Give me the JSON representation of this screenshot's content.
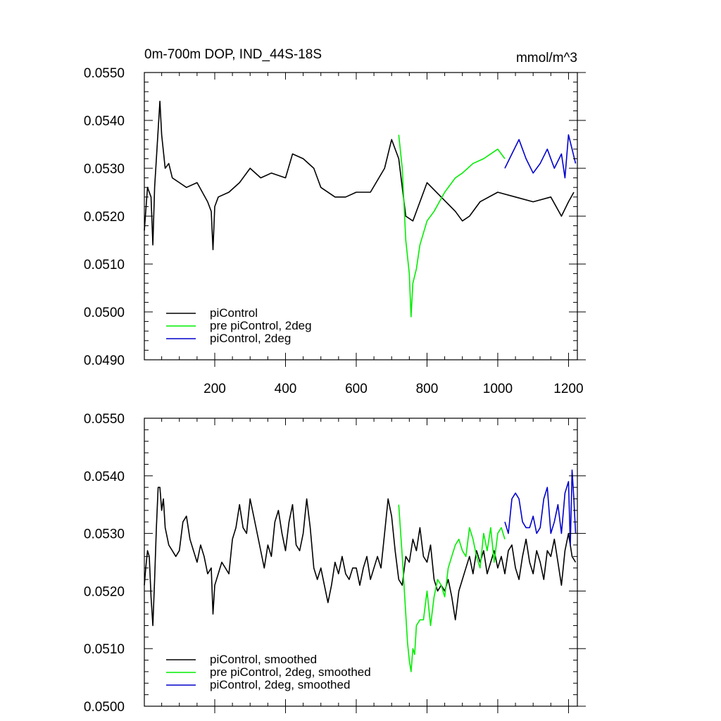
{
  "chart_data": [
    {
      "type": "line",
      "title": "0m-700m DOP, IND_44S-18S",
      "units": "mmol/m^3",
      "xlim": [
        1,
        1225
      ],
      "ylim": [
        0.049,
        0.055
      ],
      "x_ticks": [
        200,
        400,
        600,
        800,
        1000,
        1200
      ],
      "x_tick_labels": [
        "200",
        "400",
        "600",
        "800",
        "1000",
        "1200"
      ],
      "y_ticks": [
        0.049,
        0.05,
        0.051,
        0.052,
        0.053,
        0.054,
        0.055
      ],
      "y_tick_labels": [
        "0.0490",
        "0.0500",
        "0.0510",
        "0.0520",
        "0.0530",
        "0.0540",
        "0.0550"
      ],
      "legend_position": "bottom-left",
      "series": [
        {
          "name": "piControl",
          "color": "#000000",
          "x": [
            1,
            10,
            20,
            25,
            30,
            40,
            45,
            50,
            60,
            70,
            80,
            100,
            120,
            150,
            180,
            190,
            195,
            200,
            210,
            240,
            270,
            300,
            330,
            360,
            400,
            420,
            450,
            480,
            500,
            540,
            570,
            600,
            640,
            680,
            700,
            720,
            740,
            760,
            800,
            840,
            880,
            900,
            920,
            950,
            1000,
            1050,
            1100,
            1150,
            1180,
            1200,
            1215
          ],
          "values": [
            0.0517,
            0.0526,
            0.0524,
            0.0514,
            0.0526,
            0.0538,
            0.0544,
            0.0537,
            0.053,
            0.0531,
            0.0528,
            0.0527,
            0.0526,
            0.0527,
            0.0523,
            0.0521,
            0.0513,
            0.0522,
            0.0524,
            0.0525,
            0.0527,
            0.053,
            0.0528,
            0.0529,
            0.0528,
            0.0533,
            0.0532,
            0.053,
            0.0526,
            0.0524,
            0.0524,
            0.0525,
            0.0525,
            0.053,
            0.0536,
            0.0532,
            0.052,
            0.0519,
            0.0527,
            0.0524,
            0.0521,
            0.0519,
            0.052,
            0.0523,
            0.0525,
            0.0524,
            0.0523,
            0.0524,
            0.052,
            0.0523,
            0.0525
          ]
        },
        {
          "name": "pre piControl, 2deg",
          "color": "#00ee00",
          "x": [
            720,
            730,
            740,
            750,
            755,
            760,
            770,
            780,
            800,
            820,
            850,
            880,
            900,
            930,
            960,
            1000,
            1010,
            1020
          ],
          "values": [
            0.0537,
            0.053,
            0.0515,
            0.0508,
            0.0499,
            0.0506,
            0.0509,
            0.0514,
            0.0519,
            0.0521,
            0.0525,
            0.0528,
            0.0529,
            0.0531,
            0.0532,
            0.0534,
            0.0533,
            0.0532
          ]
        },
        {
          "name": "piControl, 2deg",
          "color": "#0000cc",
          "x": [
            1020,
            1040,
            1060,
            1080,
            1100,
            1120,
            1140,
            1160,
            1180,
            1190,
            1200,
            1210,
            1220
          ],
          "values": [
            0.053,
            0.0533,
            0.0536,
            0.0532,
            0.0529,
            0.0531,
            0.0534,
            0.053,
            0.0533,
            0.0528,
            0.0537,
            0.0534,
            0.0531
          ]
        }
      ]
    },
    {
      "type": "line",
      "xlim": [
        1,
        1225
      ],
      "ylim": [
        0.05,
        0.055
      ],
      "x_ticks": [
        200,
        400,
        600,
        800,
        1000,
        1200
      ],
      "y_ticks": [
        0.05,
        0.051,
        0.052,
        0.053,
        0.054,
        0.055
      ],
      "y_tick_labels": [
        "0.0500",
        "0.0510",
        "0.0520",
        "0.0530",
        "0.0540",
        "0.0550"
      ],
      "legend_position": "bottom-left",
      "series": [
        {
          "name": "piControl, smoothed",
          "color": "#000000",
          "x": [
            1,
            5,
            10,
            15,
            20,
            25,
            30,
            35,
            40,
            45,
            50,
            55,
            60,
            70,
            80,
            90,
            100,
            110,
            120,
            130,
            140,
            150,
            160,
            170,
            180,
            190,
            195,
            200,
            210,
            220,
            230,
            240,
            250,
            260,
            270,
            280,
            290,
            300,
            310,
            320,
            330,
            340,
            350,
            360,
            370,
            380,
            390,
            400,
            410,
            420,
            430,
            440,
            450,
            460,
            470,
            480,
            490,
            500,
            510,
            520,
            530,
            540,
            550,
            560,
            570,
            580,
            590,
            600,
            610,
            620,
            630,
            640,
            650,
            660,
            670,
            680,
            690,
            700,
            710,
            720,
            730,
            740,
            750,
            760,
            770,
            780,
            790,
            800,
            810,
            820,
            830,
            840,
            850,
            860,
            870,
            880,
            890,
            900,
            910,
            920,
            930,
            940,
            950,
            960,
            970,
            980,
            990,
            1000,
            1010,
            1020,
            1030,
            1040,
            1050,
            1060,
            1070,
            1080,
            1090,
            1100,
            1110,
            1120,
            1130,
            1140,
            1150,
            1160,
            1170,
            1180,
            1190,
            1200,
            1210,
            1220
          ],
          "values": [
            0.0521,
            0.0524,
            0.0527,
            0.0526,
            0.0519,
            0.0514,
            0.0522,
            0.0531,
            0.0538,
            0.0538,
            0.0534,
            0.0536,
            0.0531,
            0.0528,
            0.0527,
            0.0526,
            0.0527,
            0.0532,
            0.0533,
            0.0529,
            0.0527,
            0.0525,
            0.0528,
            0.0526,
            0.0523,
            0.0524,
            0.0516,
            0.0521,
            0.0523,
            0.0525,
            0.0524,
            0.0523,
            0.0529,
            0.0531,
            0.0535,
            0.0531,
            0.053,
            0.0536,
            0.0533,
            0.053,
            0.0527,
            0.0524,
            0.0528,
            0.0526,
            0.0532,
            0.0534,
            0.053,
            0.0527,
            0.0532,
            0.0535,
            0.0528,
            0.0527,
            0.053,
            0.0536,
            0.0531,
            0.0524,
            0.0522,
            0.0524,
            0.0521,
            0.0518,
            0.0521,
            0.0525,
            0.0523,
            0.0526,
            0.0523,
            0.0522,
            0.0524,
            0.0524,
            0.0521,
            0.0524,
            0.0526,
            0.0522,
            0.0524,
            0.0526,
            0.0524,
            0.053,
            0.0536,
            0.0533,
            0.0527,
            0.0522,
            0.0521,
            0.0526,
            0.0525,
            0.0529,
            0.0527,
            0.0531,
            0.0526,
            0.0525,
            0.0528,
            0.0522,
            0.052,
            0.0521,
            0.052,
            0.0522,
            0.0519,
            0.0515,
            0.052,
            0.0522,
            0.0524,
            0.0526,
            0.0523,
            0.0527,
            0.0525,
            0.0527,
            0.0523,
            0.0525,
            0.0527,
            0.0524,
            0.0526,
            0.0523,
            0.0527,
            0.0528,
            0.0524,
            0.0522,
            0.0526,
            0.0529,
            0.0525,
            0.0523,
            0.0527,
            0.0525,
            0.0522,
            0.0527,
            0.0526,
            0.0529,
            0.0525,
            0.0521,
            0.0527,
            0.053,
            0.0526,
            0.0525
          ]
        },
        {
          "name": "pre piControl, 2deg, smoothed",
          "color": "#00ee00",
          "x": [
            720,
            730,
            740,
            745,
            750,
            755,
            760,
            765,
            770,
            780,
            790,
            800,
            810,
            820,
            830,
            840,
            850,
            860,
            870,
            880,
            890,
            900,
            910,
            920,
            930,
            940,
            950,
            960,
            970,
            980,
            990,
            1000,
            1010,
            1020
          ],
          "values": [
            0.0535,
            0.0526,
            0.0516,
            0.0511,
            0.0508,
            0.0506,
            0.051,
            0.0509,
            0.0514,
            0.0515,
            0.0515,
            0.052,
            0.0514,
            0.0519,
            0.0522,
            0.0521,
            0.0519,
            0.0524,
            0.0526,
            0.0528,
            0.0529,
            0.0527,
            0.0526,
            0.0531,
            0.0529,
            0.0526,
            0.0524,
            0.053,
            0.0527,
            0.0531,
            0.0525,
            0.053,
            0.0531,
            0.0529
          ]
        },
        {
          "name": "piControl, 2deg, smoothed",
          "color": "#0000cc",
          "x": [
            1020,
            1030,
            1040,
            1050,
            1060,
            1070,
            1080,
            1090,
            1100,
            1110,
            1120,
            1130,
            1140,
            1150,
            1160,
            1170,
            1180,
            1190,
            1200,
            1205,
            1210,
            1215,
            1220
          ],
          "values": [
            0.0532,
            0.053,
            0.0536,
            0.0537,
            0.0536,
            0.0532,
            0.0531,
            0.0531,
            0.0533,
            0.053,
            0.0531,
            0.0536,
            0.0538,
            0.053,
            0.0532,
            0.0535,
            0.053,
            0.0537,
            0.0539,
            0.0528,
            0.0541,
            0.0536,
            0.053
          ]
        }
      ]
    }
  ]
}
